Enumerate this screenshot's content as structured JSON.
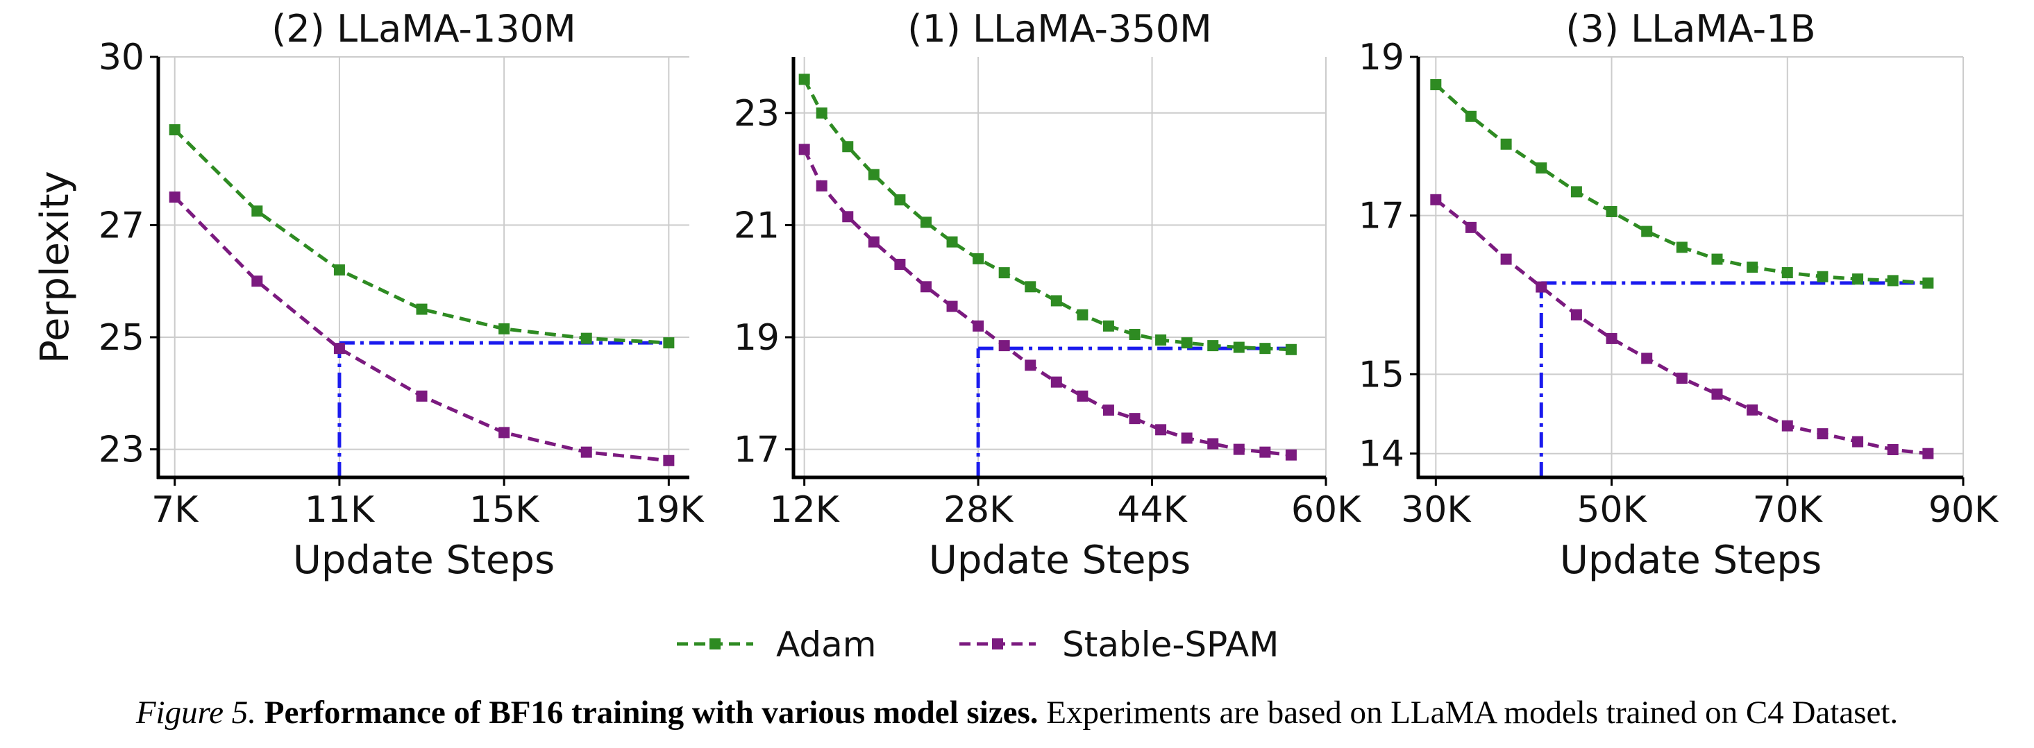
{
  "chart_data": [
    {
      "type": "line",
      "title": "(2) LLaMA-130M",
      "xlabel": "Update Steps",
      "ylabel": "Perplexity",
      "xlim": [
        6600,
        19500
      ],
      "ylim": [
        22.5,
        30
      ],
      "xticks": [
        7000,
        11000,
        15000,
        19000
      ],
      "xtick_labels": [
        "7K",
        "11K",
        "15K",
        "19K"
      ],
      "yticks": [
        23,
        25,
        27,
        30
      ],
      "ytick_labels": [
        "23",
        "25",
        "27",
        "30"
      ],
      "grid": true,
      "series": [
        {
          "name": "Adam",
          "x": [
            7000,
            9000,
            11000,
            13000,
            15000,
            17000,
            19000
          ],
          "values": [
            28.7,
            27.25,
            26.2,
            25.5,
            25.15,
            24.98,
            24.9
          ]
        },
        {
          "name": "Stable-SPAM",
          "x": [
            7000,
            9000,
            11000,
            13000,
            15000,
            17000,
            19000
          ],
          "values": [
            27.5,
            26.0,
            24.8,
            23.95,
            23.3,
            22.95,
            22.8
          ]
        }
      ],
      "reference": {
        "x_vertical": 11000,
        "y_horizontal": 24.9,
        "x_end": 19000
      }
    },
    {
      "type": "line",
      "title": "(1) LLaMA-350M",
      "xlabel": "Update Steps",
      "ylabel": "",
      "xlim": [
        11000,
        60000
      ],
      "ylim": [
        16.5,
        24
      ],
      "xticks": [
        12000,
        28000,
        44000,
        60000
      ],
      "xtick_labels": [
        "12K",
        "28K",
        "44K",
        "60K"
      ],
      "yticks": [
        17,
        19,
        21,
        23
      ],
      "ytick_labels": [
        "17",
        "19",
        "21",
        "23"
      ],
      "grid": true,
      "series": [
        {
          "name": "Adam",
          "x": [
            12000,
            13600,
            16000,
            18400,
            20800,
            23200,
            25600,
            28000,
            30400,
            32800,
            35200,
            37600,
            40000,
            42400,
            44800,
            47200,
            49600,
            52000,
            54400,
            56800
          ],
          "values": [
            23.6,
            23.0,
            22.4,
            21.9,
            21.45,
            21.05,
            20.7,
            20.4,
            20.15,
            19.9,
            19.65,
            19.4,
            19.2,
            19.05,
            18.95,
            18.9,
            18.85,
            18.82,
            18.8,
            18.78
          ]
        },
        {
          "name": "Stable-SPAM",
          "x": [
            12000,
            13600,
            16000,
            18400,
            20800,
            23200,
            25600,
            28000,
            30400,
            32800,
            35200,
            37600,
            40000,
            42400,
            44800,
            47200,
            49600,
            52000,
            54400,
            56800
          ],
          "values": [
            22.35,
            21.7,
            21.15,
            20.7,
            20.3,
            19.9,
            19.55,
            19.2,
            18.85,
            18.5,
            18.2,
            17.95,
            17.7,
            17.55,
            17.35,
            17.2,
            17.1,
            17.0,
            16.95,
            16.9
          ]
        }
      ],
      "reference": {
        "x_vertical": 28000,
        "y_horizontal": 18.8,
        "x_end": 56800
      }
    },
    {
      "type": "line",
      "title": "(3) LLaMA-1B",
      "xlabel": "Update Steps",
      "ylabel": "",
      "xlim": [
        28000,
        90000
      ],
      "ylim": [
        13.7,
        19
      ],
      "xticks": [
        30000,
        50000,
        70000,
        90000
      ],
      "xtick_labels": [
        "30K",
        "50K",
        "70K",
        "90K"
      ],
      "yticks": [
        14,
        15,
        17,
        19
      ],
      "ytick_labels": [
        "14",
        "15",
        "17",
        "19"
      ],
      "grid": true,
      "series": [
        {
          "name": "Adam",
          "x": [
            30000,
            34000,
            38000,
            42000,
            46000,
            50000,
            54000,
            58000,
            62000,
            66000,
            70000,
            74000,
            78000,
            82000,
            86000
          ],
          "values": [
            18.65,
            18.25,
            17.9,
            17.6,
            17.3,
            17.05,
            16.8,
            16.6,
            16.45,
            16.35,
            16.28,
            16.23,
            16.2,
            16.18,
            16.15
          ]
        },
        {
          "name": "Stable-SPAM",
          "x": [
            30000,
            34000,
            38000,
            42000,
            46000,
            50000,
            54000,
            58000,
            62000,
            66000,
            70000,
            74000,
            78000,
            82000,
            86000
          ],
          "values": [
            17.2,
            16.85,
            16.45,
            16.1,
            15.75,
            15.45,
            15.2,
            14.95,
            14.75,
            14.55,
            14.35,
            14.25,
            14.15,
            14.05,
            14.0
          ]
        }
      ],
      "reference": {
        "x_vertical": 42000,
        "y_horizontal": 16.15,
        "x_end": 86000
      }
    }
  ],
  "legend": [
    {
      "label": "Adam",
      "color": "#2e8b22"
    },
    {
      "label": "Stable-SPAM",
      "color": "#7b1a7f"
    }
  ],
  "reference_line_color": "#1a1aee",
  "grid_color": "#cccccc",
  "caption": {
    "label": "Figure 5.",
    "bold": "Performance of BF16 training with various model sizes.",
    "text": "Experiments are based on LLaMA models trained on C4 Dataset."
  }
}
